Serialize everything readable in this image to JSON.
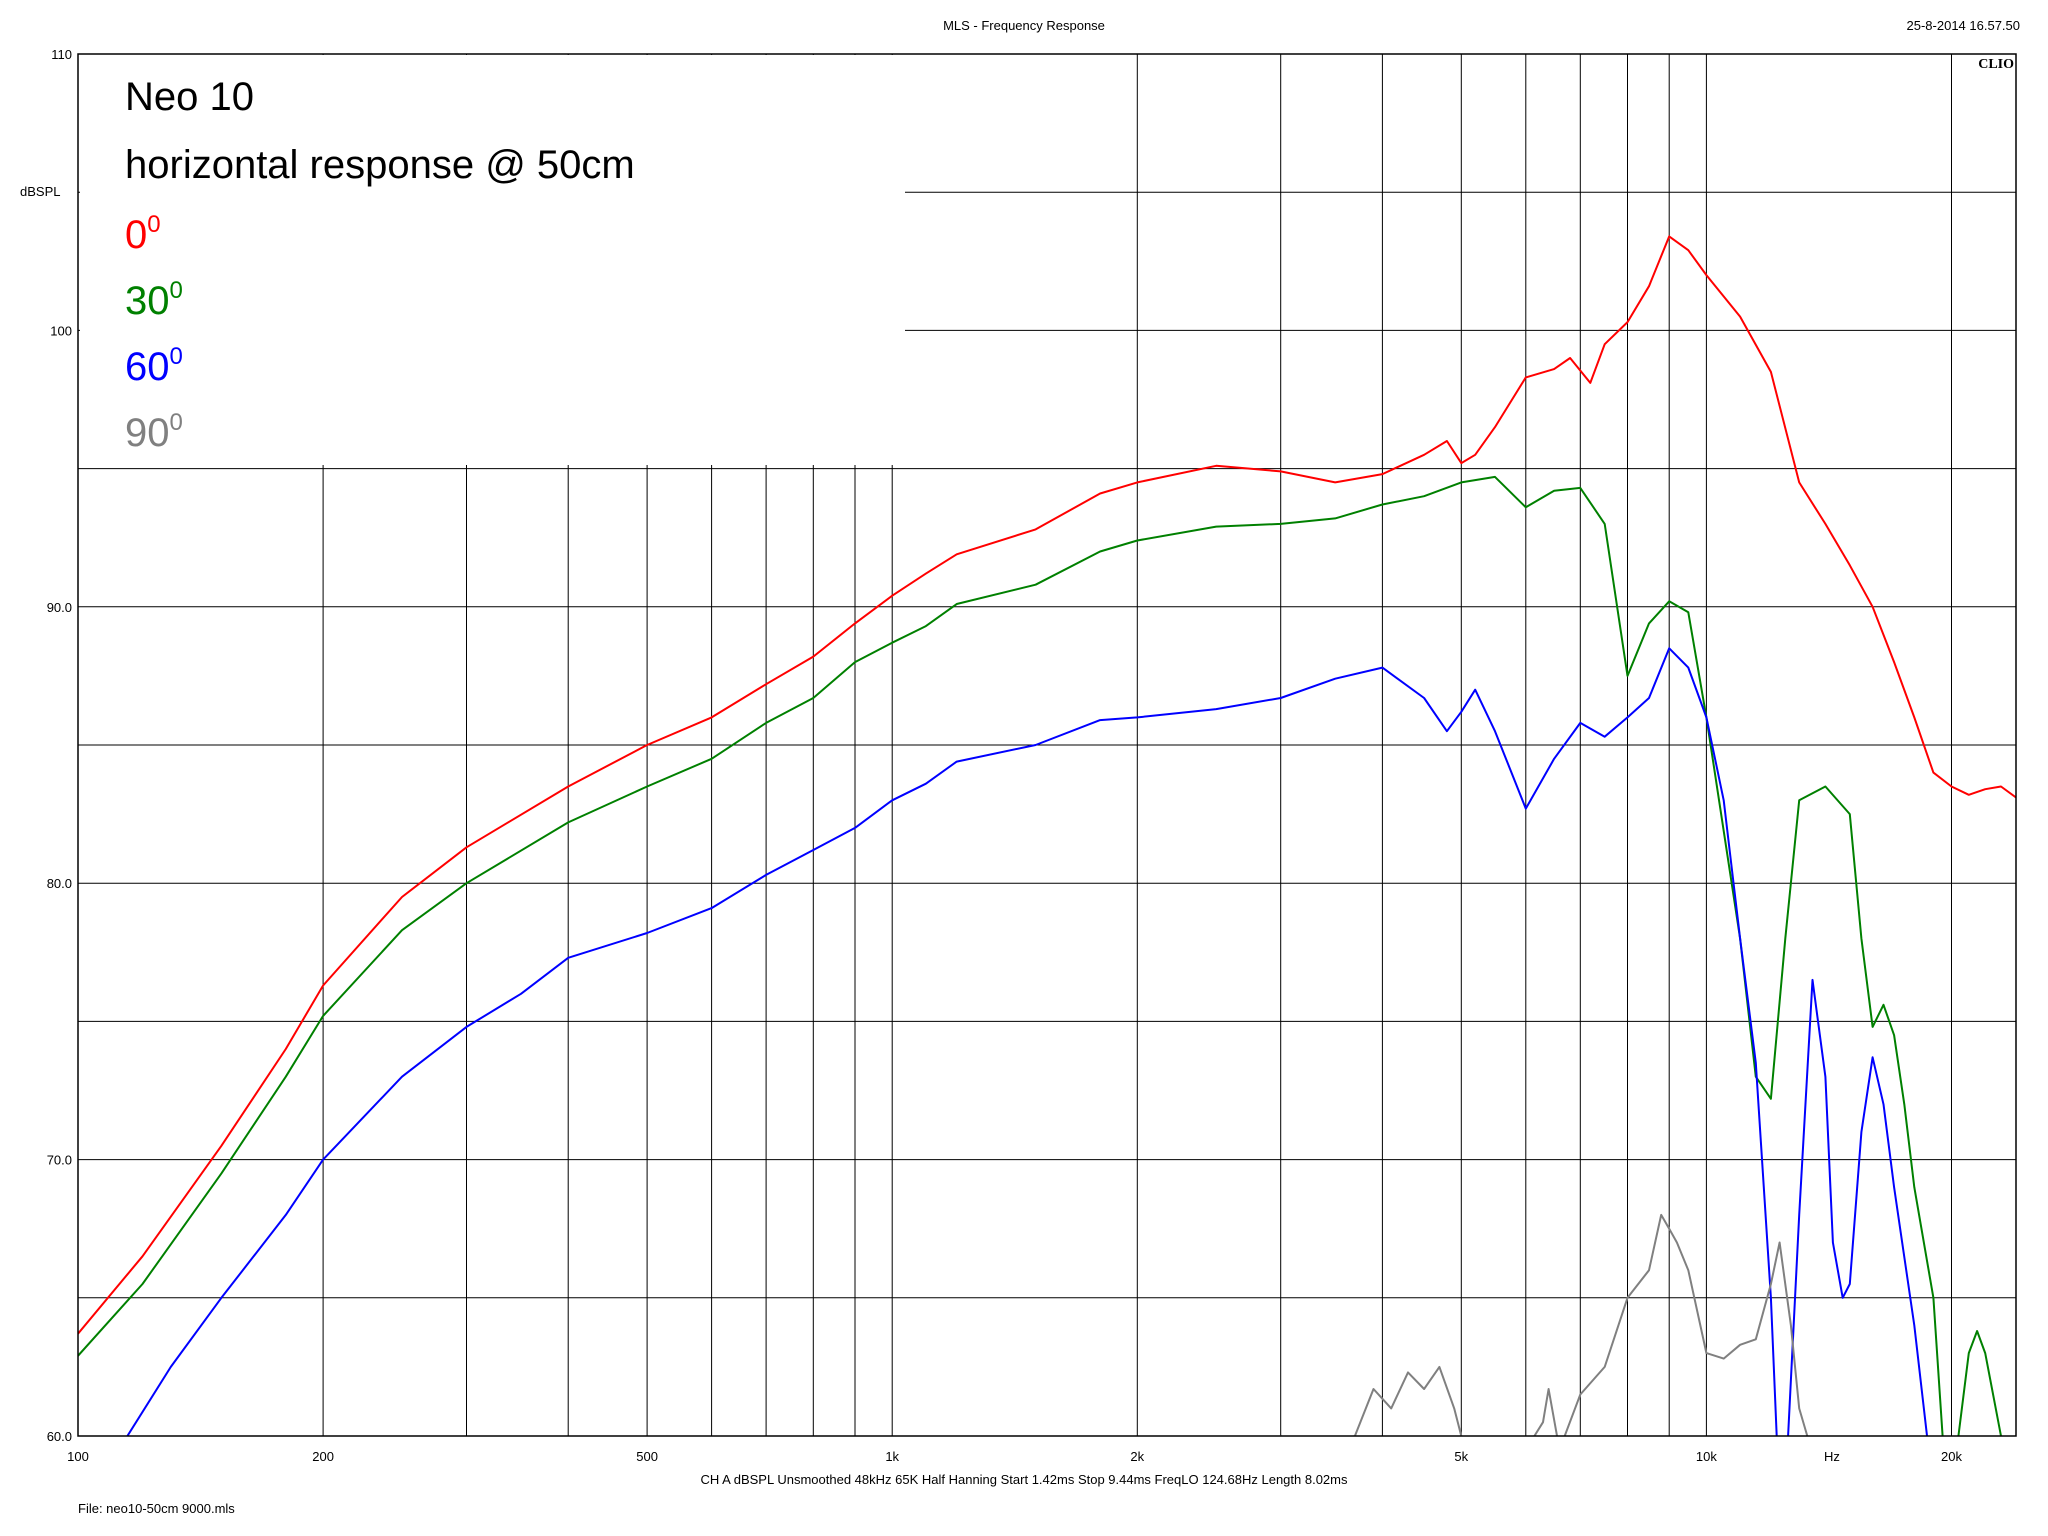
{
  "header": {
    "title": "MLS - Frequency Response",
    "timestamp": "25-8-2014 16.57.50",
    "logo": "CLIO"
  },
  "footer": {
    "settings": "CH A   dBSPL   Unsmoothed   48kHz   65K   Half Hanning   Start 1.42ms   Stop 9.44ms   FreqLO 124.68Hz   Length 8.02ms",
    "file": "File: neo10-50cm 9000.mls"
  },
  "chart_data": {
    "type": "line",
    "title": "Neo 10",
    "subtitle": "horizontal response @ 50cm",
    "xlabel": "Hz",
    "ylabel": "dBSPL",
    "xscale": "log",
    "xlim": [
      100,
      24000
    ],
    "ylim": [
      60,
      110
    ],
    "x_ticks": [
      {
        "value": 100,
        "label": "100"
      },
      {
        "value": 200,
        "label": "200"
      },
      {
        "value": 500,
        "label": "500"
      },
      {
        "value": 1000,
        "label": "1k"
      },
      {
        "value": 2000,
        "label": "2k"
      },
      {
        "value": 5000,
        "label": "5k"
      },
      {
        "value": 10000,
        "label": "10k"
      },
      {
        "value": 20000,
        "label": "20k"
      }
    ],
    "y_ticks": [
      {
        "value": 60,
        "label": "60.0"
      },
      {
        "value": 70,
        "label": "70.0"
      },
      {
        "value": 80,
        "label": "80.0"
      },
      {
        "value": 90,
        "label": "90.0"
      },
      {
        "value": 100,
        "label": "100"
      },
      {
        "value": 110,
        "label": "110"
      }
    ],
    "grid": true,
    "legend_position": "top-left",
    "series": [
      {
        "name": "0",
        "label_sup": "0",
        "color": "#ff0000",
        "points": [
          [
            100,
            63.7
          ],
          [
            120,
            66.5
          ],
          [
            150,
            70.5
          ],
          [
            180,
            74
          ],
          [
            200,
            76.3
          ],
          [
            250,
            79.5
          ],
          [
            300,
            81.3
          ],
          [
            400,
            83.5
          ],
          [
            500,
            85
          ],
          [
            600,
            86
          ],
          [
            700,
            87.2
          ],
          [
            800,
            88.2
          ],
          [
            900,
            89.4
          ],
          [
            1000,
            90.4
          ],
          [
            1100,
            91.2
          ],
          [
            1200,
            91.9
          ],
          [
            1500,
            92.8
          ],
          [
            1800,
            94.1
          ],
          [
            2000,
            94.5
          ],
          [
            2500,
            95.1
          ],
          [
            3000,
            94.9
          ],
          [
            3500,
            94.5
          ],
          [
            4000,
            94.8
          ],
          [
            4500,
            95.5
          ],
          [
            4800,
            96
          ],
          [
            5000,
            95.2
          ],
          [
            5200,
            95.5
          ],
          [
            5500,
            96.5
          ],
          [
            6000,
            98.3
          ],
          [
            6500,
            98.6
          ],
          [
            6800,
            99
          ],
          [
            7200,
            98.1
          ],
          [
            7500,
            99.5
          ],
          [
            8000,
            100.3
          ],
          [
            8500,
            101.6
          ],
          [
            9000,
            103.4
          ],
          [
            9500,
            102.9
          ],
          [
            10000,
            102
          ],
          [
            11000,
            100.5
          ],
          [
            12000,
            98.5
          ],
          [
            13000,
            94.5
          ],
          [
            14000,
            93
          ],
          [
            15000,
            91.5
          ],
          [
            16000,
            90
          ],
          [
            17000,
            88
          ],
          [
            18000,
            86
          ],
          [
            19000,
            84
          ],
          [
            20000,
            83.5
          ],
          [
            21000,
            83.2
          ],
          [
            22000,
            83.4
          ],
          [
            23000,
            83.5
          ],
          [
            24000,
            83.1
          ]
        ]
      },
      {
        "name": "30",
        "label_sup": "0",
        "color": "#008000",
        "points": [
          [
            100,
            62.9
          ],
          [
            120,
            65.5
          ],
          [
            150,
            69.5
          ],
          [
            180,
            73
          ],
          [
            200,
            75.2
          ],
          [
            250,
            78.3
          ],
          [
            300,
            80
          ],
          [
            400,
            82.2
          ],
          [
            500,
            83.5
          ],
          [
            600,
            84.5
          ],
          [
            700,
            85.8
          ],
          [
            800,
            86.7
          ],
          [
            900,
            88
          ],
          [
            1000,
            88.7
          ],
          [
            1100,
            89.3
          ],
          [
            1200,
            90.1
          ],
          [
            1500,
            90.8
          ],
          [
            1800,
            92
          ],
          [
            2000,
            92.4
          ],
          [
            2500,
            92.9
          ],
          [
            3000,
            93
          ],
          [
            3500,
            93.2
          ],
          [
            4000,
            93.7
          ],
          [
            4500,
            94
          ],
          [
            5000,
            94.5
          ],
          [
            5500,
            94.7
          ],
          [
            6000,
            93.6
          ],
          [
            6500,
            94.2
          ],
          [
            7000,
            94.3
          ],
          [
            7500,
            93
          ],
          [
            8000,
            87.5
          ],
          [
            8500,
            89.4
          ],
          [
            9000,
            90.2
          ],
          [
            9500,
            89.8
          ],
          [
            10000,
            86
          ],
          [
            11000,
            78
          ],
          [
            11500,
            73
          ],
          [
            12000,
            72.2
          ],
          [
            12500,
            78
          ],
          [
            13000,
            83
          ],
          [
            14000,
            83.5
          ],
          [
            15000,
            82.5
          ],
          [
            15500,
            78
          ],
          [
            16000,
            74.8
          ],
          [
            16500,
            75.6
          ],
          [
            17000,
            74.5
          ],
          [
            17500,
            72
          ],
          [
            18000,
            69
          ],
          [
            19000,
            65
          ],
          [
            19500,
            60
          ],
          [
            20000,
            58
          ],
          [
            21000,
            63
          ],
          [
            21500,
            63.8
          ],
          [
            22000,
            63
          ],
          [
            23000,
            60
          ],
          [
            24000,
            59
          ]
        ]
      },
      {
        "name": "60",
        "label_sup": "0",
        "color": "#0000ff",
        "points": [
          [
            115,
            60
          ],
          [
            130,
            62.5
          ],
          [
            150,
            65
          ],
          [
            180,
            68
          ],
          [
            200,
            70
          ],
          [
            250,
            73
          ],
          [
            300,
            74.8
          ],
          [
            350,
            76
          ],
          [
            400,
            77.3
          ],
          [
            500,
            78.2
          ],
          [
            600,
            79.1
          ],
          [
            700,
            80.3
          ],
          [
            800,
            81.2
          ],
          [
            900,
            82
          ],
          [
            1000,
            83
          ],
          [
            1100,
            83.6
          ],
          [
            1200,
            84.4
          ],
          [
            1500,
            85
          ],
          [
            1800,
            85.9
          ],
          [
            2000,
            86
          ],
          [
            2500,
            86.3
          ],
          [
            3000,
            86.7
          ],
          [
            3500,
            87.4
          ],
          [
            4000,
            87.8
          ],
          [
            4500,
            86.7
          ],
          [
            4800,
            85.5
          ],
          [
            5000,
            86.2
          ],
          [
            5200,
            87
          ],
          [
            5500,
            85.5
          ],
          [
            6000,
            82.7
          ],
          [
            6500,
            84.5
          ],
          [
            7000,
            85.8
          ],
          [
            7500,
            85.3
          ],
          [
            8000,
            86
          ],
          [
            8500,
            86.7
          ],
          [
            9000,
            88.5
          ],
          [
            9500,
            87.8
          ],
          [
            10000,
            86
          ],
          [
            10500,
            83
          ],
          [
            11000,
            78
          ],
          [
            11500,
            73.5
          ],
          [
            12000,
            65
          ],
          [
            12200,
            60
          ],
          [
            12500,
            58
          ],
          [
            13000,
            68
          ],
          [
            13500,
            76.5
          ],
          [
            14000,
            73
          ],
          [
            14300,
            67
          ],
          [
            14700,
            65
          ],
          [
            15000,
            65.5
          ],
          [
            15500,
            71
          ],
          [
            16000,
            73.7
          ],
          [
            16500,
            72
          ],
          [
            17000,
            69
          ],
          [
            18000,
            64
          ],
          [
            19000,
            58
          ],
          [
            24000,
            58
          ],
          [
            24500,
            60.5
          ]
        ]
      },
      {
        "name": "90",
        "label_sup": "0",
        "color": "#808080",
        "points": [
          [
            2800,
            59
          ],
          [
            3000,
            60
          ],
          [
            3300,
            59.5
          ],
          [
            3700,
            60
          ],
          [
            3900,
            61.7
          ],
          [
            4100,
            61
          ],
          [
            4300,
            62.3
          ],
          [
            4500,
            61.7
          ],
          [
            4700,
            62.5
          ],
          [
            4900,
            61
          ],
          [
            5000,
            60
          ],
          [
            5200,
            59
          ],
          [
            6000,
            59.5
          ],
          [
            6300,
            60.5
          ],
          [
            6400,
            61.7
          ],
          [
            6600,
            59.5
          ],
          [
            7000,
            61.5
          ],
          [
            7500,
            62.5
          ],
          [
            8000,
            65
          ],
          [
            8500,
            66
          ],
          [
            8800,
            68
          ],
          [
            9000,
            67.5
          ],
          [
            9200,
            67
          ],
          [
            9500,
            66
          ],
          [
            10000,
            63
          ],
          [
            10500,
            62.8
          ],
          [
            11000,
            63.3
          ],
          [
            11500,
            63.5
          ],
          [
            12000,
            65.5
          ],
          [
            12300,
            67
          ],
          [
            12700,
            64
          ],
          [
            13000,
            61
          ],
          [
            13300,
            60
          ],
          [
            13600,
            59.5
          ]
        ]
      }
    ]
  }
}
